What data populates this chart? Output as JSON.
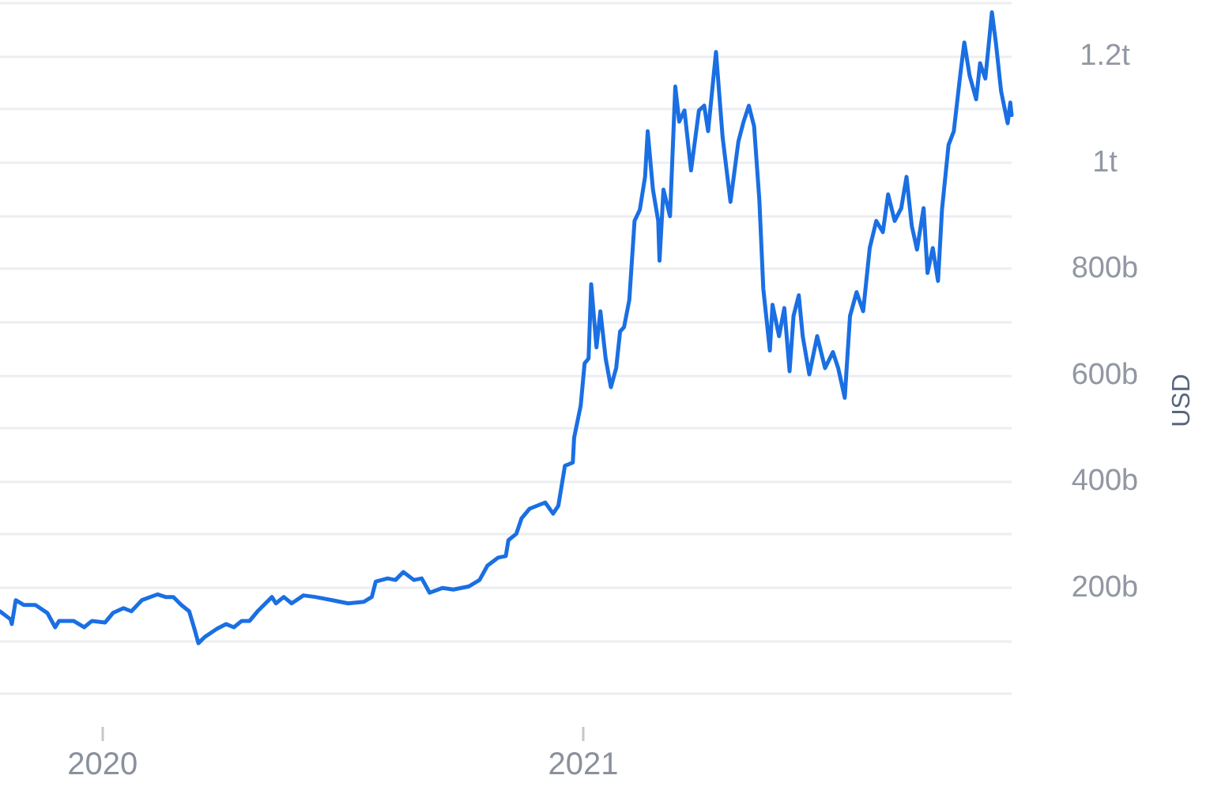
{
  "chart_data": {
    "type": "line",
    "ylabel": "USD",
    "x": [
      "2019-10-15",
      "2019-10-23",
      "2019-10-24",
      "2019-10-27",
      "2019-11-02",
      "2019-11-11",
      "2019-11-20",
      "2019-11-26",
      "2019-11-29",
      "2019-12-10",
      "2019-12-18",
      "2019-12-24",
      "2020-01-03",
      "2020-01-09",
      "2020-01-17",
      "2020-01-23",
      "2020-01-31",
      "2020-02-12",
      "2020-02-18",
      "2020-02-24",
      "2020-03-01",
      "2020-03-07",
      "2020-03-11",
      "2020-03-14",
      "2020-03-19",
      "2020-03-28",
      "2020-04-04",
      "2020-04-10",
      "2020-04-16",
      "2020-04-22",
      "2020-04-28",
      "2020-05-09",
      "2020-05-12",
      "2020-05-18",
      "2020-05-24",
      "2020-06-02",
      "2020-06-11",
      "2020-06-24",
      "2020-07-06",
      "2020-07-18",
      "2020-07-24",
      "2020-07-27",
      "2020-08-05",
      "2020-08-11",
      "2020-08-17",
      "2020-08-25",
      "2020-08-31",
      "2020-09-06",
      "2020-09-16",
      "2020-09-24",
      "2020-10-06",
      "2020-10-14",
      "2020-10-20",
      "2020-10-28",
      "2020-11-03",
      "2020-11-05",
      "2020-11-11",
      "2020-11-15",
      "2020-11-21",
      "2020-11-27",
      "2020-12-03",
      "2020-12-09",
      "2020-12-13",
      "2020-12-18",
      "2020-12-24",
      "2020-12-25",
      "2020-12-30",
      "2021-01-02",
      "2021-01-05",
      "2021-01-07",
      "2021-01-11",
      "2021-01-14",
      "2021-01-18",
      "2021-01-22",
      "2021-01-26",
      "2021-01-29",
      "2021-02-01",
      "2021-02-05",
      "2021-02-09",
      "2021-02-13",
      "2021-02-17",
      "2021-02-19",
      "2021-02-23",
      "2021-02-27",
      "2021-02-28",
      "2021-03-03",
      "2021-03-08",
      "2021-03-12",
      "2021-03-15",
      "2021-03-19",
      "2021-03-24",
      "2021-03-30",
      "2021-04-03",
      "2021-04-06",
      "2021-04-12",
      "2021-04-17",
      "2021-04-23",
      "2021-04-29",
      "2021-05-03",
      "2021-05-07",
      "2021-05-11",
      "2021-05-15",
      "2021-05-18",
      "2021-05-23",
      "2021-05-25",
      "2021-05-30",
      "2021-06-03",
      "2021-06-07",
      "2021-06-10",
      "2021-06-14",
      "2021-06-17",
      "2021-06-22",
      "2021-06-28",
      "2021-07-04",
      "2021-07-10",
      "2021-07-14",
      "2021-07-19",
      "2021-07-23",
      "2021-07-28",
      "2021-08-02",
      "2021-08-07",
      "2021-08-12",
      "2021-08-17",
      "2021-08-21",
      "2021-08-26",
      "2021-08-31",
      "2021-09-04",
      "2021-09-08",
      "2021-09-12",
      "2021-09-17",
      "2021-09-20",
      "2021-09-24",
      "2021-09-28",
      "2021-10-01",
      "2021-10-06",
      "2021-10-10",
      "2021-10-15",
      "2021-10-18",
      "2021-10-22",
      "2021-10-27",
      "2021-10-30",
      "2021-11-03",
      "2021-11-08",
      "2021-11-11",
      "2021-11-15",
      "2021-11-20",
      "2021-11-22",
      "2021-11-23"
    ],
    "values": [
      155000000000.0,
      140000000000.0,
      131000000000.0,
      176000000000.0,
      167000000000.0,
      167000000000.0,
      152000000000.0,
      125000000000.0,
      137000000000.0,
      137000000000.0,
      125000000000.0,
      137000000000.0,
      134000000000.0,
      152000000000.0,
      161000000000.0,
      155000000000.0,
      176000000000.0,
      187000000000.0,
      182000000000.0,
      182000000000.0,
      167000000000.0,
      155000000000.0,
      122000000000.0,
      95000000000.0,
      107000000000.0,
      122000000000.0,
      131000000000.0,
      125000000000.0,
      137000000000.0,
      137000000000.0,
      155000000000.0,
      182000000000.0,
      170000000000.0,
      182000000000.0,
      170000000000.0,
      185000000000.0,
      182000000000.0,
      176000000000.0,
      170000000000.0,
      173000000000.0,
      182000000000.0,
      211000000000.0,
      217000000000.0,
      214000000000.0,
      229000000000.0,
      214000000000.0,
      217000000000.0,
      190000000000.0,
      199000000000.0,
      196000000000.0,
      202000000000.0,
      214000000000.0,
      241000000000.0,
      256000000000.0,
      259000000000.0,
      289000000000.0,
      301000000000.0,
      330000000000.0,
      348000000000.0,
      354000000000.0,
      360000000000.0,
      339000000000.0,
      354000000000.0,
      429000000000.0,
      435000000000.0,
      482000000000.0,
      542000000000.0,
      622000000000.0,
      631000000000.0,
      771000000000.0,
      652000000000.0,
      720000000000.0,
      631000000000.0,
      577000000000.0,
      613000000000.0,
      682000000000.0,
      690000000000.0,
      741000000000.0,
      890000000000.0,
      911000000000.0,
      973000000000.0,
      1059000000000.0,
      949000000000.0,
      890000000000.0,
      815000000000.0,
      949000000000.0,
      899000000000.0,
      1143000000000.0,
      1077000000000.0,
      1098000000000.0,
      985000000000.0,
      1098000000000.0,
      1107000000000.0,
      1059000000000.0,
      1208000000000.0,
      1048000000000.0,
      926000000000.0,
      1039000000000.0,
      1077000000000.0,
      1107000000000.0,
      1068000000000.0,
      929000000000.0,
      762000000000.0,
      646000000000.0,
      732000000000.0,
      673000000000.0,
      726000000000.0,
      607000000000.0,
      711000000000.0,
      750000000000.0,
      673000000000.0,
      601000000000.0,
      673000000000.0,
      613000000000.0,
      643000000000.0,
      613000000000.0,
      557000000000.0,
      711000000000.0,
      756000000000.0,
      720000000000.0,
      839000000000.0,
      890000000000.0,
      869000000000.0,
      940000000000.0,
      890000000000.0,
      914000000000.0,
      973000000000.0,
      881000000000.0,
      836000000000.0,
      914000000000.0,
      792000000000.0,
      839000000000.0,
      777000000000.0,
      911000000000.0,
      1033000000000.0,
      1059000000000.0,
      1167000000000.0,
      1226000000000.0,
      1164000000000.0,
      1119000000000.0,
      1187000000000.0,
      1158000000000.0,
      1283000000000.0,
      1226000000000.0,
      1134000000000.0,
      1074000000000.0,
      1113000000000.0,
      1089000000000.0
    ],
    "color": "#1a6fe3",
    "xlim": [
      "2019-10-15",
      "2021-11-23"
    ],
    "xticks": [
      "2020",
      "2021"
    ],
    "ylim": [
      0,
      1300000000000.0
    ],
    "yticks": [
      {
        "value": 0,
        "label": null
      },
      {
        "value": 100000000000.0,
        "label": null
      },
      {
        "value": 200000000000.0,
        "label": "200b"
      },
      {
        "value": 300000000000.0,
        "label": null
      },
      {
        "value": 400000000000.0,
        "label": "400b"
      },
      {
        "value": 500000000000.0,
        "label": null
      },
      {
        "value": 600000000000.0,
        "label": "600b"
      },
      {
        "value": 700000000000.0,
        "label": null
      },
      {
        "value": 800000000000.0,
        "label": "800b"
      },
      {
        "value": 900000000000.0,
        "label": null
      },
      {
        "value": 1000000000000.0,
        "label": "1t"
      },
      {
        "value": 1100000000000.0,
        "label": null
      },
      {
        "value": 1200000000000.0,
        "label": "1.2t"
      },
      {
        "value": 1300000000000.0,
        "label": null
      }
    ],
    "grid": "y",
    "marker": "none",
    "line_style": "solid"
  }
}
